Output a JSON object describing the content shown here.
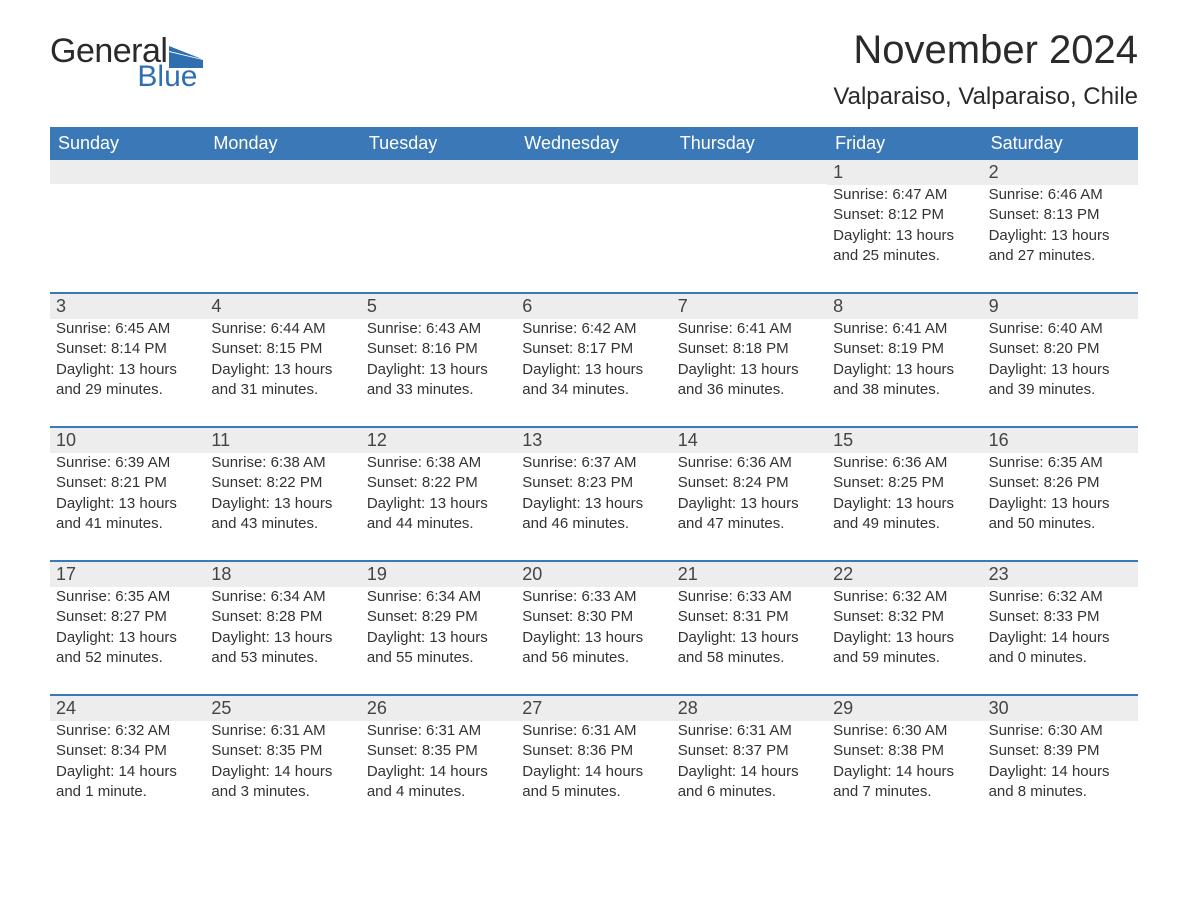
{
  "logo": {
    "text_general": "General",
    "text_blue": "Blue",
    "flag_color": "#2f6fb0"
  },
  "title": "November 2024",
  "location": "Valparaiso, Valparaiso, Chile",
  "colors": {
    "header_bg": "#3b78b8",
    "header_text": "#ffffff",
    "week_border": "#3b78b8",
    "daynum_bg": "#ededed",
    "text": "#333333"
  },
  "day_names": [
    "Sunday",
    "Monday",
    "Tuesday",
    "Wednesday",
    "Thursday",
    "Friday",
    "Saturday"
  ],
  "weeks": [
    [
      {
        "empty": true
      },
      {
        "empty": true
      },
      {
        "empty": true
      },
      {
        "empty": true
      },
      {
        "empty": true
      },
      {
        "day": "1",
        "sunrise": "Sunrise: 6:47 AM",
        "sunset": "Sunset: 8:12 PM",
        "daylight1": "Daylight: 13 hours",
        "daylight2": "and 25 minutes."
      },
      {
        "day": "2",
        "sunrise": "Sunrise: 6:46 AM",
        "sunset": "Sunset: 8:13 PM",
        "daylight1": "Daylight: 13 hours",
        "daylight2": "and 27 minutes."
      }
    ],
    [
      {
        "day": "3",
        "sunrise": "Sunrise: 6:45 AM",
        "sunset": "Sunset: 8:14 PM",
        "daylight1": "Daylight: 13 hours",
        "daylight2": "and 29 minutes."
      },
      {
        "day": "4",
        "sunrise": "Sunrise: 6:44 AM",
        "sunset": "Sunset: 8:15 PM",
        "daylight1": "Daylight: 13 hours",
        "daylight2": "and 31 minutes."
      },
      {
        "day": "5",
        "sunrise": "Sunrise: 6:43 AM",
        "sunset": "Sunset: 8:16 PM",
        "daylight1": "Daylight: 13 hours",
        "daylight2": "and 33 minutes."
      },
      {
        "day": "6",
        "sunrise": "Sunrise: 6:42 AM",
        "sunset": "Sunset: 8:17 PM",
        "daylight1": "Daylight: 13 hours",
        "daylight2": "and 34 minutes."
      },
      {
        "day": "7",
        "sunrise": "Sunrise: 6:41 AM",
        "sunset": "Sunset: 8:18 PM",
        "daylight1": "Daylight: 13 hours",
        "daylight2": "and 36 minutes."
      },
      {
        "day": "8",
        "sunrise": "Sunrise: 6:41 AM",
        "sunset": "Sunset: 8:19 PM",
        "daylight1": "Daylight: 13 hours",
        "daylight2": "and 38 minutes."
      },
      {
        "day": "9",
        "sunrise": "Sunrise: 6:40 AM",
        "sunset": "Sunset: 8:20 PM",
        "daylight1": "Daylight: 13 hours",
        "daylight2": "and 39 minutes."
      }
    ],
    [
      {
        "day": "10",
        "sunrise": "Sunrise: 6:39 AM",
        "sunset": "Sunset: 8:21 PM",
        "daylight1": "Daylight: 13 hours",
        "daylight2": "and 41 minutes."
      },
      {
        "day": "11",
        "sunrise": "Sunrise: 6:38 AM",
        "sunset": "Sunset: 8:22 PM",
        "daylight1": "Daylight: 13 hours",
        "daylight2": "and 43 minutes."
      },
      {
        "day": "12",
        "sunrise": "Sunrise: 6:38 AM",
        "sunset": "Sunset: 8:22 PM",
        "daylight1": "Daylight: 13 hours",
        "daylight2": "and 44 minutes."
      },
      {
        "day": "13",
        "sunrise": "Sunrise: 6:37 AM",
        "sunset": "Sunset: 8:23 PM",
        "daylight1": "Daylight: 13 hours",
        "daylight2": "and 46 minutes."
      },
      {
        "day": "14",
        "sunrise": "Sunrise: 6:36 AM",
        "sunset": "Sunset: 8:24 PM",
        "daylight1": "Daylight: 13 hours",
        "daylight2": "and 47 minutes."
      },
      {
        "day": "15",
        "sunrise": "Sunrise: 6:36 AM",
        "sunset": "Sunset: 8:25 PM",
        "daylight1": "Daylight: 13 hours",
        "daylight2": "and 49 minutes."
      },
      {
        "day": "16",
        "sunrise": "Sunrise: 6:35 AM",
        "sunset": "Sunset: 8:26 PM",
        "daylight1": "Daylight: 13 hours",
        "daylight2": "and 50 minutes."
      }
    ],
    [
      {
        "day": "17",
        "sunrise": "Sunrise: 6:35 AM",
        "sunset": "Sunset: 8:27 PM",
        "daylight1": "Daylight: 13 hours",
        "daylight2": "and 52 minutes."
      },
      {
        "day": "18",
        "sunrise": "Sunrise: 6:34 AM",
        "sunset": "Sunset: 8:28 PM",
        "daylight1": "Daylight: 13 hours",
        "daylight2": "and 53 minutes."
      },
      {
        "day": "19",
        "sunrise": "Sunrise: 6:34 AM",
        "sunset": "Sunset: 8:29 PM",
        "daylight1": "Daylight: 13 hours",
        "daylight2": "and 55 minutes."
      },
      {
        "day": "20",
        "sunrise": "Sunrise: 6:33 AM",
        "sunset": "Sunset: 8:30 PM",
        "daylight1": "Daylight: 13 hours",
        "daylight2": "and 56 minutes."
      },
      {
        "day": "21",
        "sunrise": "Sunrise: 6:33 AM",
        "sunset": "Sunset: 8:31 PM",
        "daylight1": "Daylight: 13 hours",
        "daylight2": "and 58 minutes."
      },
      {
        "day": "22",
        "sunrise": "Sunrise: 6:32 AM",
        "sunset": "Sunset: 8:32 PM",
        "daylight1": "Daylight: 13 hours",
        "daylight2": "and 59 minutes."
      },
      {
        "day": "23",
        "sunrise": "Sunrise: 6:32 AM",
        "sunset": "Sunset: 8:33 PM",
        "daylight1": "Daylight: 14 hours",
        "daylight2": "and 0 minutes."
      }
    ],
    [
      {
        "day": "24",
        "sunrise": "Sunrise: 6:32 AM",
        "sunset": "Sunset: 8:34 PM",
        "daylight1": "Daylight: 14 hours",
        "daylight2": "and 1 minute."
      },
      {
        "day": "25",
        "sunrise": "Sunrise: 6:31 AM",
        "sunset": "Sunset: 8:35 PM",
        "daylight1": "Daylight: 14 hours",
        "daylight2": "and 3 minutes."
      },
      {
        "day": "26",
        "sunrise": "Sunrise: 6:31 AM",
        "sunset": "Sunset: 8:35 PM",
        "daylight1": "Daylight: 14 hours",
        "daylight2": "and 4 minutes."
      },
      {
        "day": "27",
        "sunrise": "Sunrise: 6:31 AM",
        "sunset": "Sunset: 8:36 PM",
        "daylight1": "Daylight: 14 hours",
        "daylight2": "and 5 minutes."
      },
      {
        "day": "28",
        "sunrise": "Sunrise: 6:31 AM",
        "sunset": "Sunset: 8:37 PM",
        "daylight1": "Daylight: 14 hours",
        "daylight2": "and 6 minutes."
      },
      {
        "day": "29",
        "sunrise": "Sunrise: 6:30 AM",
        "sunset": "Sunset: 8:38 PM",
        "daylight1": "Daylight: 14 hours",
        "daylight2": "and 7 minutes."
      },
      {
        "day": "30",
        "sunrise": "Sunrise: 6:30 AM",
        "sunset": "Sunset: 8:39 PM",
        "daylight1": "Daylight: 14 hours",
        "daylight2": "and 8 minutes."
      }
    ]
  ]
}
